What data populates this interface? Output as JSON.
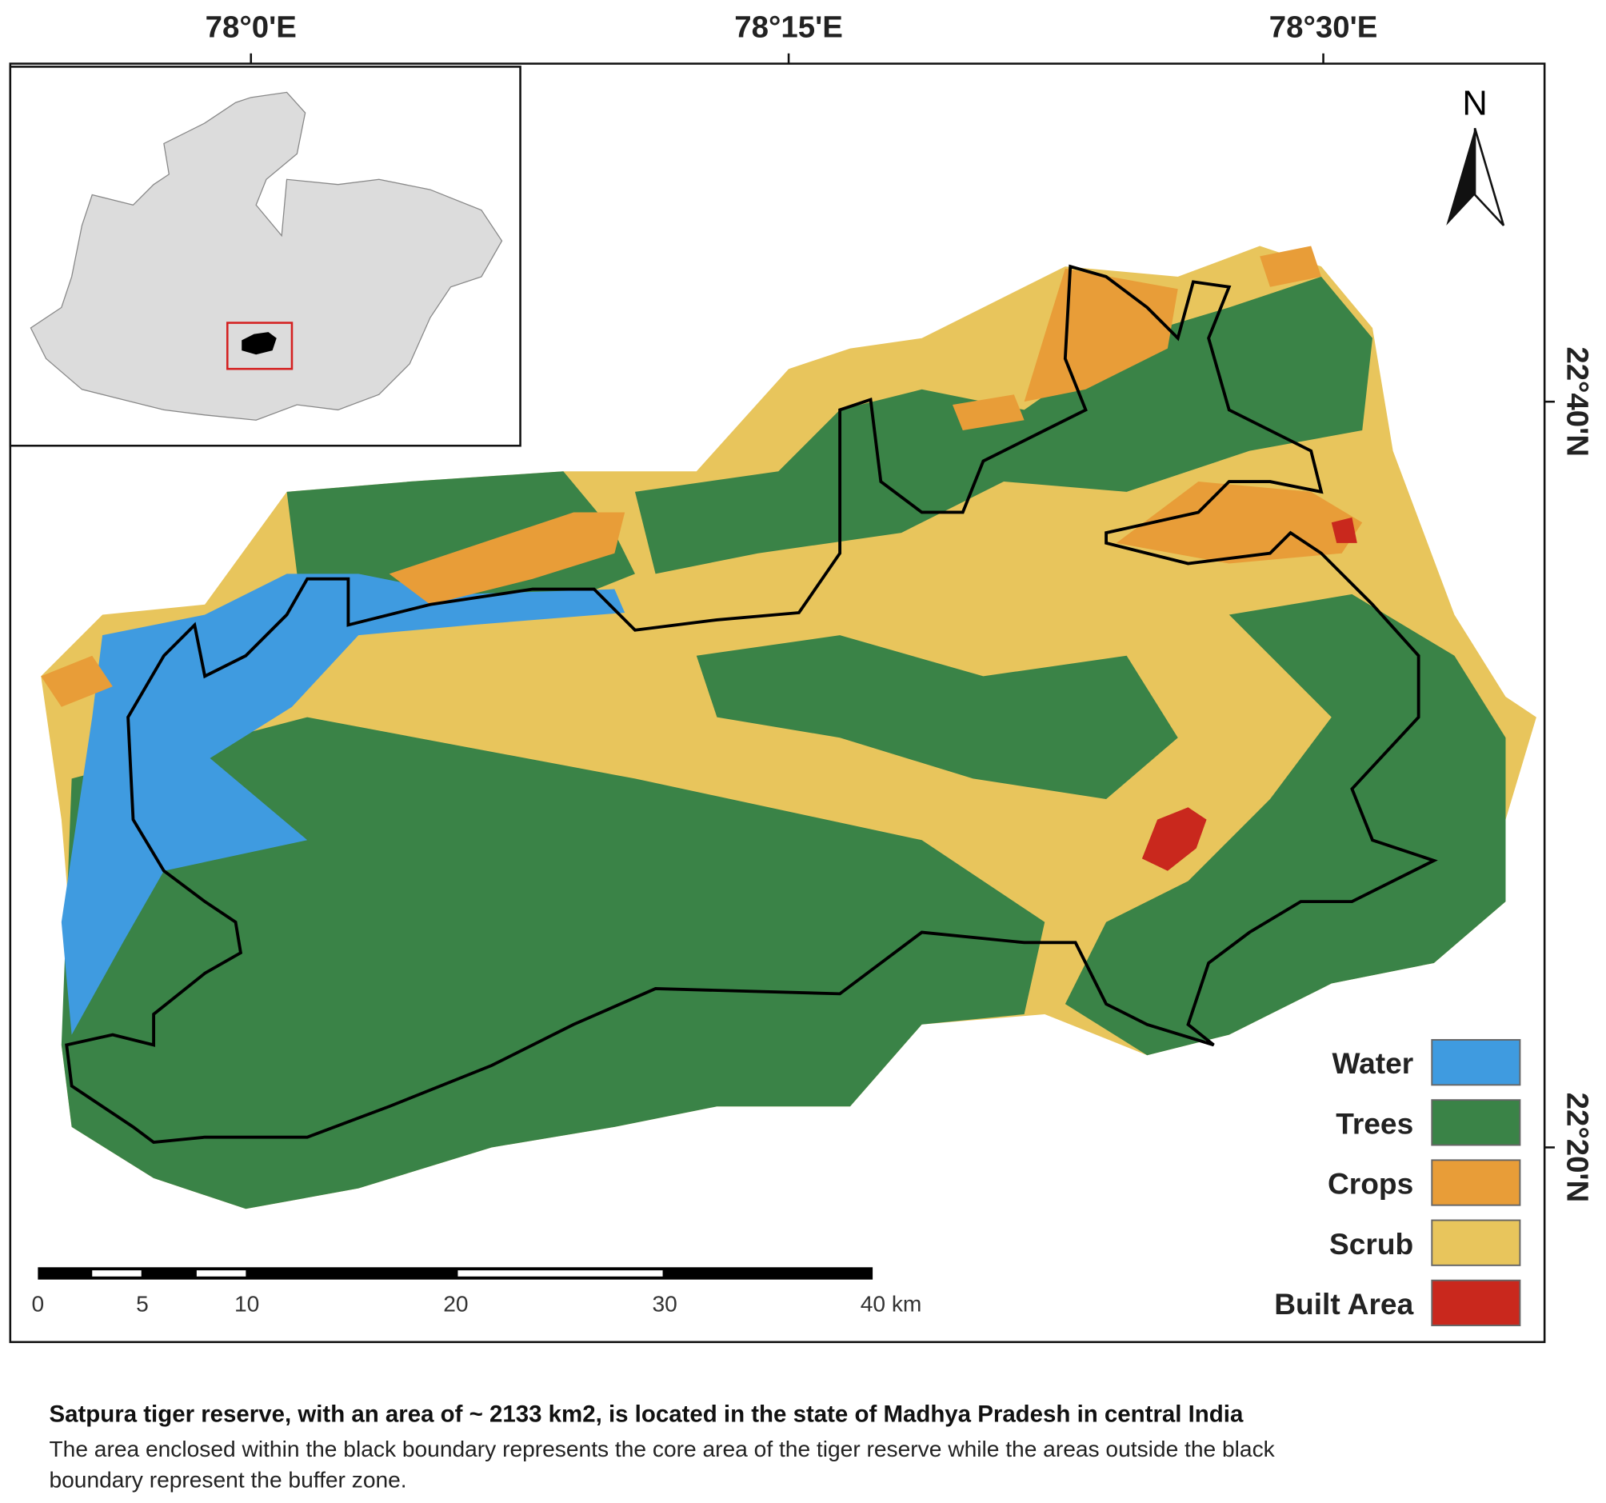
{
  "map": {
    "longitude_labels": [
      "78°0'E",
      "78°15'E",
      "78°30'E"
    ],
    "latitude_labels": [
      "22°40'N",
      "22°20'N"
    ],
    "north_label": "N",
    "legend": [
      {
        "label": "Water",
        "color": "#3f9be0"
      },
      {
        "label": "Trees",
        "color": "#3a8347"
      },
      {
        "label": "Crops",
        "color": "#e89d38"
      },
      {
        "label": "Scrub",
        "color": "#e8c55c"
      },
      {
        "label": "Built Area",
        "color": "#c9281d"
      }
    ],
    "scale_bar_labels": [
      "0",
      "5",
      "10",
      "20",
      "30",
      "40 km"
    ]
  },
  "caption": {
    "title": "Satpura tiger reserve, with an area of ~ 2133 km2, is located in the state of Madhya Pradesh in central India",
    "text_lines": [
      "The area enclosed within the black boundary represents the core area of the tiger reserve while the areas outside the black",
      "boundary represent the buffer zone."
    ]
  }
}
